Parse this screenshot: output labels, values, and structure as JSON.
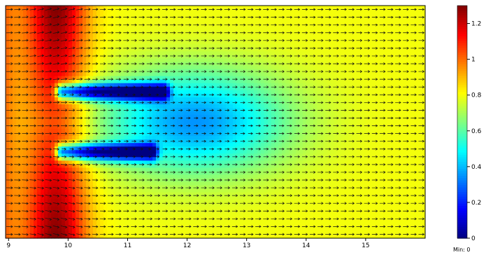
{
  "chart_data": {
    "type": "heatmap",
    "title": "",
    "xlabel": "",
    "ylabel": "",
    "x_ticks": [
      9,
      10,
      11,
      12,
      13,
      14,
      15
    ],
    "xlim": [
      8.95,
      16.0
    ],
    "colorbar": {
      "range": [
        0,
        1.3
      ],
      "ticks": [
        {
          "value": 0,
          "label": "0"
        },
        {
          "value": 0.2,
          "label": "0.2"
        },
        {
          "value": 0.4,
          "label": "0.4"
        },
        {
          "value": 0.6,
          "label": "0.6"
        },
        {
          "value": 0.8,
          "label": "0.8"
        },
        {
          "value": 1.0,
          "label": "1"
        },
        {
          "value": 1.2,
          "label": "1.2"
        }
      ],
      "min_text": "Min: 0",
      "colormap": "jet"
    },
    "overlay": "arrow field (flow direction, left to right)",
    "features": {
      "inflow_value": 1.0,
      "high_band_x": 9.8,
      "high_band_peak": 1.3,
      "far_field_value": 0.8,
      "wake_value": 0.55,
      "obstacles": [
        {
          "name": "upper plate",
          "x_start": 9.9,
          "x_end": 11.6,
          "level": "upper"
        },
        {
          "name": "lower plate",
          "x_start": 9.9,
          "x_end": 11.4,
          "level": "lower"
        }
      ]
    }
  }
}
